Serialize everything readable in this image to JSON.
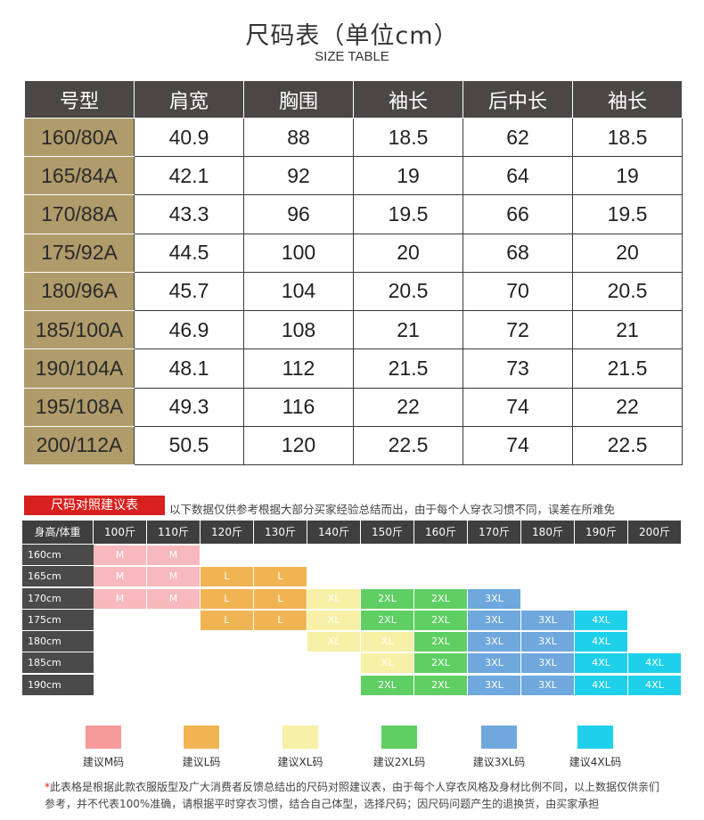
{
  "title": "尺码表（单位cm）",
  "subtitle": "SIZE TABLE",
  "size_table": {
    "headers": [
      "号型",
      "肩宽",
      "胸围",
      "袖长",
      "后中长",
      "袖长"
    ],
    "rows": [
      [
        "160/80A",
        "40.9",
        "88",
        "18.5",
        "62",
        "18.5"
      ],
      [
        "165/84A",
        "42.1",
        "92",
        "19",
        "64",
        "19"
      ],
      [
        "170/88A",
        "43.3",
        "96",
        "19.5",
        "66",
        "19.5"
      ],
      [
        "175/92A",
        "44.5",
        "100",
        "20",
        "68",
        "20"
      ],
      [
        "180/96A",
        "45.7",
        "104",
        "20.5",
        "70",
        "20.5"
      ],
      [
        "185/100A",
        "46.9",
        "108",
        "21",
        "72",
        "21"
      ],
      [
        "190/104A",
        "48.1",
        "112",
        "21.5",
        "73",
        "21.5"
      ],
      [
        "195/108A",
        "49.3",
        "116",
        "22",
        "74",
        "22"
      ],
      [
        "200/112A",
        "50.5",
        "120",
        "22.5",
        "74",
        "22.5"
      ]
    ]
  },
  "reference": {
    "banner": "尺码对照建议表",
    "note": "以下数据仅供参考根据大部分买家经验总结而出，由于每个人穿衣习惯不同，误差在所难免",
    "corner": "身高/体重",
    "weights": [
      "100斤",
      "110斤",
      "120斤",
      "130斤",
      "140斤",
      "150斤",
      "160斤",
      "170斤",
      "180斤",
      "190斤",
      "200斤"
    ],
    "heights": [
      "160cm",
      "165cm",
      "170cm",
      "175cm",
      "180cm",
      "185cm",
      "190cm"
    ],
    "grid": [
      [
        "M",
        "M",
        "",
        "",
        "",
        "",
        "",
        "",
        "",
        "",
        ""
      ],
      [
        "M",
        "M",
        "L",
        "L",
        "",
        "",
        "",
        "",
        "",
        "",
        ""
      ],
      [
        "M",
        "M",
        "L",
        "L",
        "XL",
        "2XL",
        "2XL",
        "3XL",
        "",
        "",
        ""
      ],
      [
        "",
        "",
        "L",
        "L",
        "XL",
        "2XL",
        "2XL",
        "3XL",
        "3XL",
        "4XL",
        ""
      ],
      [
        "",
        "",
        "",
        "",
        "XL",
        "XL",
        "2XL",
        "3XL",
        "3XL",
        "4XL",
        ""
      ],
      [
        "",
        "",
        "",
        "",
        "",
        "XL",
        "2XL",
        "3XL",
        "3XL",
        "4XL",
        "4XL"
      ],
      [
        "",
        "",
        "",
        "",
        "",
        "2XL",
        "2XL",
        "3XL",
        "3XL",
        "4XL",
        "4XL"
      ]
    ],
    "size_colors": {
      "M": "#f7b9bd",
      "L": "#f0b552",
      "XL": "#f6f1a6",
      "2XL": "#5fcf63",
      "3XL": "#6fa8dc",
      "4XL": "#1ed0ea"
    }
  },
  "legend": [
    {
      "label": "建议M码",
      "color": "#f79a9b"
    },
    {
      "label": "建议L码",
      "color": "#f0b552"
    },
    {
      "label": "建议XL码",
      "color": "#f6f1a6"
    },
    {
      "label": "建议2XL码",
      "color": "#5fcf63"
    },
    {
      "label": "建议3XL码",
      "color": "#6fa8dc"
    },
    {
      "label": "建议4XL码",
      "color": "#1ed0ea"
    }
  ],
  "footnote": {
    "star": "*",
    "text": "此表格是根据此款衣服版型及广大消费者反馈总结出的尺码对照建议表，由于每个人穿衣风格及身材比例不同，以上数据仅供亲们参考，并不代表100%准确，请根据平时穿衣习惯，结合自己体型，选择尺码；因尺码问题产生的退换货，由买家承担"
  }
}
